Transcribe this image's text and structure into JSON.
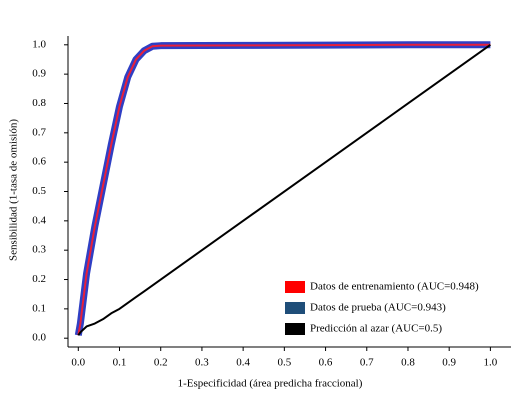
{
  "chart_data": {
    "type": "line",
    "xlabel": "1-Especificidad (área predicha fraccional)",
    "ylabel": "Sensibilidad (1-tasa de omisión)",
    "x": [
      0,
      0.005,
      0.02,
      0.04,
      0.06,
      0.08,
      0.1,
      0.12,
      0.14,
      0.16,
      0.18,
      0.2,
      0.4,
      0.6,
      0.8,
      1.0
    ],
    "series": [
      {
        "name": "Datos de prueba (AUC=0.943)",
        "color": "#2f3fc4",
        "legend_color": "#1f4e79",
        "values": [
          0.01,
          0.05,
          0.22,
          0.38,
          0.52,
          0.66,
          0.79,
          0.89,
          0.95,
          0.98,
          0.995,
          0.997,
          0.998,
          0.999,
          1.0,
          1.0
        ]
      },
      {
        "name": "Datos de entrenamiento (AUC=0.948)",
        "color": "#e8203a",
        "legend_color": "#ff0000",
        "values": [
          0.01,
          0.05,
          0.22,
          0.38,
          0.52,
          0.66,
          0.79,
          0.89,
          0.95,
          0.98,
          0.995,
          0.997,
          0.998,
          0.999,
          1.0,
          1.0
        ]
      },
      {
        "name": "Predicción al azar (AUC=0.5)",
        "color": "#000000",
        "legend_color": "#000000",
        "values": [
          0.01,
          0.02,
          0.04,
          0.05,
          0.065,
          0.085,
          0.1,
          0.12,
          0.14,
          0.16,
          0.18,
          0.2,
          0.4,
          0.6,
          0.8,
          1.0
        ]
      }
    ],
    "legend_order": [
      1,
      0,
      2
    ],
    "legend": "lower right",
    "xlim": [
      -0.025,
      1.05
    ],
    "ylim": [
      -0.03,
      1.03
    ],
    "xticks": [
      {
        "value": 0,
        "label": "0.0"
      },
      0.1,
      0.2,
      0.3,
      0.4,
      0.5,
      0.6,
      0.7,
      0.8,
      0.9,
      {
        "value": 1,
        "label": "1.0"
      }
    ],
    "yticks": [
      {
        "value": 0,
        "label": "0.0"
      },
      0.1,
      0.2,
      0.3,
      0.4,
      0.5,
      0.6,
      0.7,
      0.8,
      0.9,
      {
        "value": 1,
        "label": "1.0"
      }
    ]
  }
}
